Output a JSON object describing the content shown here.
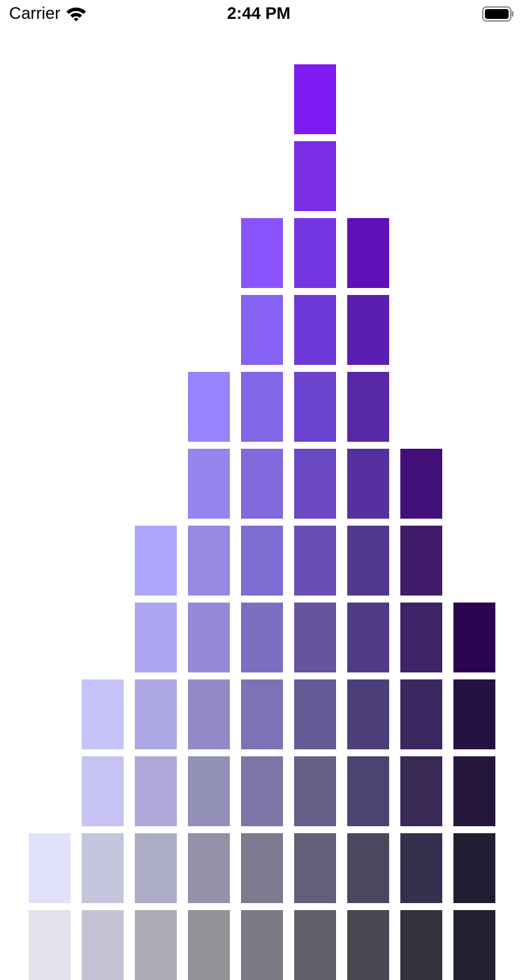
{
  "status_bar": {
    "carrier": "Carrier",
    "time": "2:44 PM",
    "wifi_icon": "wifi-icon",
    "battery_icon": "battery-full-icon"
  },
  "palette": {
    "columns": [
      {
        "colors": [
          "#e1e1fa",
          "#e3e1eb"
        ]
      },
      {
        "colors": [
          "#c6c3fa",
          "#c6c3f2",
          "#c5c5dd",
          "#c5c3d3"
        ]
      },
      {
        "colors": [
          "#ada5fb",
          "#ada5f2",
          "#ada8e4",
          "#ada8d8",
          "#adacc6",
          "#adacb9"
        ]
      },
      {
        "colors": [
          "#9784fc",
          "#9785ed",
          "#9589e3",
          "#958ad7",
          "#9489c6",
          "#9390b8",
          "#9392a8",
          "#929197"
        ]
      },
      {
        "colors": [
          "#8a54fc",
          "#8661f4",
          "#8166e7",
          "#8168dd",
          "#7e6cd3",
          "#7e6ec2",
          "#7c73b6",
          "#7c77a6",
          "#7b7a8f",
          "#7b7a85"
        ]
      },
      {
        "colors": [
          "#7e1bf2",
          "#792ee6",
          "#7436e0",
          "#6e3ad7",
          "#6c43cf",
          "#6b49c2",
          "#6a4eb5",
          "#6654a1",
          "#655a96",
          "#656087",
          "#656079",
          "#63606e"
        ]
      },
      {
        "colors": [
          "#600fbb",
          "#5b1eb2",
          "#5827a7",
          "#55309e",
          "#52388f",
          "#4f3b88",
          "#4c3f79",
          "#4c4370",
          "#4a475f",
          "#4a4751"
        ]
      },
      {
        "colors": [
          "#431079",
          "#401c6b",
          "#3d2367",
          "#3b2861",
          "#382955",
          "#36304e",
          "#35323e"
        ]
      },
      {
        "colors": [
          "#2c034f",
          "#261241",
          "#24173b",
          "#231d34",
          "#222131"
        ]
      }
    ]
  }
}
